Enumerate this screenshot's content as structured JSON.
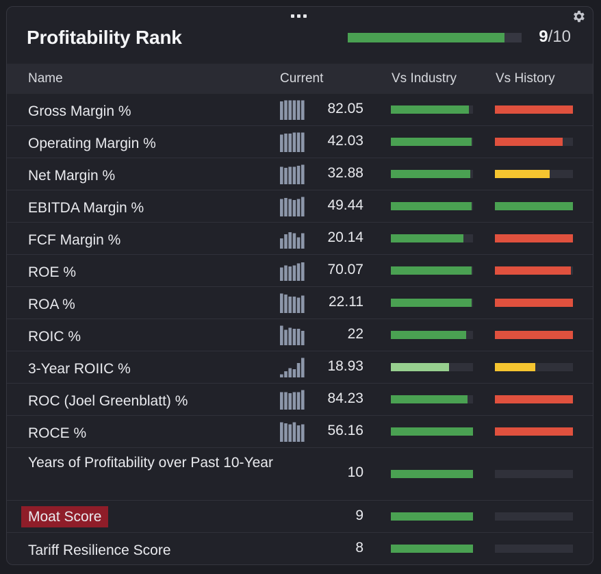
{
  "header": {
    "title": "Profitability Rank",
    "rank_value": "9",
    "rank_total": "/10",
    "rank_fraction": 0.9
  },
  "columns": {
    "name": "Name",
    "current": "Current",
    "vs_industry": "Vs Industry",
    "vs_history": "Vs History"
  },
  "colors": {
    "green": "#4aa152",
    "light_green": "#97cf8f",
    "red": "#e0513e",
    "yellow": "#f6c530",
    "track": "#30313a",
    "spark": "#8d97aa",
    "moat_highlight": "#8f1d29"
  },
  "rows": [
    {
      "name": "Gross Margin %",
      "value": "82.05",
      "spark": [
        0.9,
        0.95,
        0.95,
        0.95,
        0.95,
        0.95
      ],
      "industry": 0.95,
      "industry_color": "green",
      "history": 1.0,
      "history_color": "red"
    },
    {
      "name": "Operating Margin %",
      "value": "42.03",
      "spark": [
        0.85,
        0.9,
        0.9,
        0.95,
        0.95,
        0.95
      ],
      "industry": 0.98,
      "industry_color": "green",
      "history": 0.87,
      "history_color": "red"
    },
    {
      "name": "Net Margin %",
      "value": "32.88",
      "spark": [
        0.85,
        0.8,
        0.85,
        0.85,
        0.9,
        0.95
      ],
      "industry": 0.97,
      "industry_color": "green",
      "history": 0.7,
      "history_color": "yellow"
    },
    {
      "name": "EBITDA Margin %",
      "value": "49.44",
      "spark": [
        0.85,
        0.9,
        0.85,
        0.8,
        0.85,
        0.95
      ],
      "industry": 0.98,
      "industry_color": "green",
      "history": 1.0,
      "history_color": "green"
    },
    {
      "name": "FCF Margin %",
      "value": "20.14",
      "spark": [
        0.5,
        0.7,
        0.8,
        0.75,
        0.55,
        0.75
      ],
      "industry": 0.88,
      "industry_color": "green",
      "history": 1.0,
      "history_color": "red"
    },
    {
      "name": "ROE %",
      "value": "70.07",
      "spark": [
        0.65,
        0.75,
        0.7,
        0.75,
        0.85,
        0.9
      ],
      "industry": 0.98,
      "industry_color": "green",
      "history": 0.97,
      "history_color": "red"
    },
    {
      "name": "ROA %",
      "value": "22.11",
      "spark": [
        0.95,
        0.9,
        0.8,
        0.8,
        0.75,
        0.85
      ],
      "industry": 0.98,
      "industry_color": "green",
      "history": 1.0,
      "history_color": "red"
    },
    {
      "name": "ROIC %",
      "value": "22",
      "spark": [
        0.95,
        0.75,
        0.85,
        0.8,
        0.8,
        0.7
      ],
      "industry": 0.92,
      "industry_color": "green",
      "history": 1.0,
      "history_color": "red"
    },
    {
      "name": "3-Year ROIIC %",
      "value": "18.93",
      "spark": [
        0.15,
        0.3,
        0.45,
        0.4,
        0.7,
        0.95
      ],
      "industry": 0.71,
      "industry_color": "light_green",
      "history": 0.52,
      "history_color": "yellow"
    },
    {
      "name": "ROC (Joel Greenblatt) %",
      "value": "84.23",
      "spark": [
        0.85,
        0.85,
        0.8,
        0.85,
        0.85,
        0.95
      ],
      "industry": 0.93,
      "industry_color": "green",
      "history": 1.0,
      "history_color": "red"
    },
    {
      "name": "ROCE %",
      "value": "56.16",
      "spark": [
        0.95,
        0.9,
        0.85,
        0.95,
        0.8,
        0.85
      ],
      "industry": 1.0,
      "industry_color": "green",
      "history": 1.0,
      "history_color": "red"
    },
    {
      "name": "Years of Profitability over Past 10-Year",
      "value": "10",
      "industry": 1.0,
      "industry_color": "green",
      "history": 0,
      "history_color": "red"
    },
    {
      "name": "Moat Score",
      "value": "9",
      "industry": 1.0,
      "industry_color": "green",
      "history": 0,
      "history_color": "red",
      "highlighted": true
    },
    {
      "name": "Tariff Resilience Score",
      "value": "8",
      "industry": 1.0,
      "industry_color": "green",
      "history": 0,
      "history_color": "red"
    }
  ]
}
